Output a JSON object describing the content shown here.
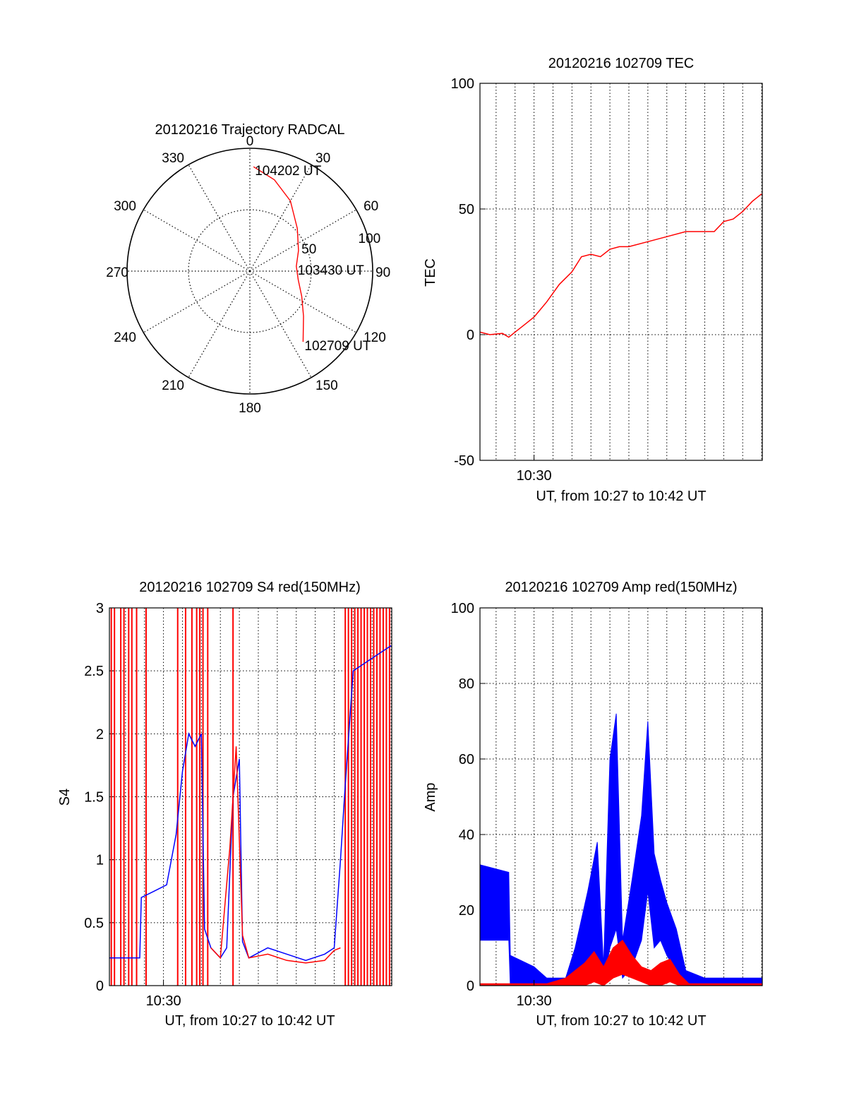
{
  "chart_data": [
    {
      "type": "polar",
      "title": "20120216 Trajectory RADCAL",
      "angle_ticks": [
        "0",
        "30",
        "60",
        "90",
        "120",
        "150",
        "180",
        "210",
        "240",
        "270",
        "300",
        "330"
      ],
      "radial_ticks": [
        "50",
        "100"
      ],
      "rlim": [
        0,
        100
      ],
      "grid": true,
      "series": [
        {
          "color": "#ff0000",
          "points": [
            {
              "az": 2,
              "r": 85,
              "label": "104202 UT"
            },
            {
              "az": 15,
              "r": 77
            },
            {
              "az": 30,
              "r": 66
            },
            {
              "az": 48,
              "r": 52
            },
            {
              "az": 67,
              "r": 43
            },
            {
              "az": 84,
              "r": 38,
              "label": "103430 UT"
            },
            {
              "az": 100,
              "r": 40
            },
            {
              "az": 116,
              "r": 47
            },
            {
              "az": 130,
              "r": 57
            },
            {
              "az": 143,
              "r": 72,
              "label": "102709 UT"
            }
          ]
        }
      ]
    },
    {
      "type": "line",
      "title": "20120216 102709 TEC",
      "ylabel": "TEC",
      "xlabel": "UT, from 10:27 to 10:42 UT",
      "xlim": [
        "10:27:09",
        "10:42:02"
      ],
      "x_ticks": [
        "10:30"
      ],
      "ylim": [
        -50,
        100
      ],
      "y_ticks": [
        100,
        50,
        0,
        -50
      ],
      "grid": true,
      "series": [
        {
          "color": "#ff0000",
          "points": [
            [
              "10:27:09",
              1
            ],
            [
              "10:27:40",
              0
            ],
            [
              "10:28:20",
              0.5
            ],
            [
              "10:28:40",
              -1
            ],
            [
              "10:29:00",
              1
            ],
            [
              "10:29:30",
              4
            ],
            [
              "10:30:00",
              7
            ],
            [
              "10:30:40",
              13
            ],
            [
              "10:31:20",
              20
            ],
            [
              "10:32:00",
              25
            ],
            [
              "10:32:30",
              31
            ],
            [
              "10:33:00",
              32
            ],
            [
              "10:33:30",
              31
            ],
            [
              "10:34:00",
              34
            ],
            [
              "10:34:30",
              35
            ],
            [
              "10:35:00",
              35
            ],
            [
              "10:36:00",
              37
            ],
            [
              "10:37:00",
              39
            ],
            [
              "10:38:00",
              41
            ],
            [
              "10:39:00",
              41
            ],
            [
              "10:39:30",
              41
            ],
            [
              "10:40:00",
              45
            ],
            [
              "10:40:30",
              46
            ],
            [
              "10:41:00",
              49
            ],
            [
              "10:41:30",
              53
            ],
            [
              "10:42:00",
              56
            ]
          ]
        }
      ]
    },
    {
      "type": "line",
      "title": "20120216 102709 S4 red(150MHz)",
      "ylabel": "S4",
      "xlabel": "UT, from 10:27 to 10:42 UT",
      "xlim": [
        "10:27:09",
        "10:42:02"
      ],
      "x_ticks": [
        "10:30"
      ],
      "ylim": [
        0,
        3
      ],
      "y_ticks": [
        3,
        2.5,
        2,
        1.5,
        1,
        0.5,
        0
      ],
      "grid": true,
      "series": [
        {
          "color": "#0000ff",
          "points": [
            [
              "10:27:09",
              0.22
            ],
            [
              "10:28:00",
              0.22
            ],
            [
              "10:28:45",
              0.22
            ],
            [
              "10:28:50",
              0.7
            ],
            [
              "10:29:30",
              0.75
            ],
            [
              "10:30:10",
              0.8
            ],
            [
              "10:30:40",
              1.2
            ],
            [
              "10:31:00",
              1.7
            ],
            [
              "10:31:20",
              2.0
            ],
            [
              "10:31:40",
              1.9
            ],
            [
              "10:32:00",
              2.0
            ],
            [
              "10:32:10",
              0.45
            ],
            [
              "10:32:30",
              0.3
            ],
            [
              "10:33:00",
              0.22
            ],
            [
              "10:33:20",
              0.3
            ],
            [
              "10:33:40",
              1.5
            ],
            [
              "10:34:00",
              1.8
            ],
            [
              "10:34:10",
              0.35
            ],
            [
              "10:34:30",
              0.22
            ],
            [
              "10:35:30",
              0.3
            ],
            [
              "10:36:30",
              0.25
            ],
            [
              "10:37:30",
              0.2
            ],
            [
              "10:38:30",
              0.25
            ],
            [
              "10:39:00",
              0.3
            ],
            [
              "10:39:20",
              1.0
            ],
            [
              "10:39:35",
              1.6
            ],
            [
              "10:40:00",
              2.5
            ],
            [
              "10:41:00",
              2.6
            ],
            [
              "10:42:00",
              2.7
            ]
          ]
        },
        {
          "color": "#ff0000",
          "points": [
            [
              "10:32:30",
              0.3
            ],
            [
              "10:33:00",
              0.22
            ],
            [
              "10:33:30",
              1.1
            ],
            [
              "10:33:50",
              1.9
            ],
            [
              "10:34:10",
              0.4
            ],
            [
              "10:34:30",
              0.22
            ],
            [
              "10:35:30",
              0.25
            ],
            [
              "10:36:30",
              0.2
            ],
            [
              "10:37:30",
              0.18
            ],
            [
              "10:38:30",
              0.2
            ],
            [
              "10:39:00",
              0.28
            ],
            [
              "10:39:20",
              0.3
            ]
          ]
        }
      ],
      "spikes": {
        "color": "#ff0000",
        "x": [
          "10:27:15",
          "10:27:25",
          "10:27:45",
          "10:27:55",
          "10:28:10",
          "10:28:20",
          "10:28:35",
          "10:29:05",
          "10:30:45",
          "10:31:10",
          "10:31:30",
          "10:31:45",
          "10:31:55",
          "10:32:05",
          "10:32:20",
          "10:33:40",
          "10:39:35",
          "10:39:45",
          "10:39:55",
          "10:40:05",
          "10:40:15",
          "10:40:25",
          "10:40:35",
          "10:40:45",
          "10:40:55",
          "10:41:05",
          "10:41:15",
          "10:41:25",
          "10:41:35",
          "10:41:45",
          "10:41:55"
        ]
      }
    },
    {
      "type": "line",
      "title": "20120216 102709 Amp red(150MHz)",
      "ylabel": "Amp",
      "xlabel": "UT, from 10:27 to 10:42 UT",
      "xlim": [
        "10:27:09",
        "10:42:02"
      ],
      "x_ticks": [
        "10:30"
      ],
      "ylim": [
        0,
        100
      ],
      "y_ticks": [
        100,
        80,
        60,
        40,
        20,
        0
      ],
      "grid": true,
      "series": [
        {
          "color": "#0000ff",
          "band": [
            [
              "10:27:09",
              12,
              32
            ],
            [
              "10:28:40",
              12,
              30
            ],
            [
              "10:28:45",
              0,
              8
            ],
            [
              "10:30:00",
              0,
              5
            ],
            [
              "10:30:40",
              0,
              2
            ],
            [
              "10:31:40",
              0,
              2
            ],
            [
              "10:32:10",
              0,
              10
            ],
            [
              "10:32:50",
              2,
              25
            ],
            [
              "10:33:20",
              3,
              38
            ],
            [
              "10:33:40",
              1,
              5
            ],
            [
              "10:34:00",
              10,
              60
            ],
            [
              "10:34:20",
              15,
              72
            ],
            [
              "10:34:40",
              2,
              12
            ],
            [
              "10:35:10",
              5,
              28
            ],
            [
              "10:35:40",
              12,
              45
            ],
            [
              "10:36:00",
              25,
              70
            ],
            [
              "10:36:20",
              10,
              35
            ],
            [
              "10:36:40",
              12,
              28
            ],
            [
              "10:37:00",
              8,
              22
            ],
            [
              "10:37:30",
              4,
              15
            ],
            [
              "10:38:00",
              0,
              4
            ],
            [
              "10:39:00",
              0,
              2
            ],
            [
              "10:42:00",
              0,
              2
            ]
          ]
        },
        {
          "color": "#ff0000",
          "band": [
            [
              "10:27:09",
              0,
              0.5
            ],
            [
              "10:30:40",
              0,
              0.5
            ],
            [
              "10:31:40",
              0,
              2
            ],
            [
              "10:32:40",
              0,
              6
            ],
            [
              "10:33:10",
              1,
              9
            ],
            [
              "10:33:40",
              0,
              5
            ],
            [
              "10:34:10",
              2,
              10
            ],
            [
              "10:34:40",
              3,
              12
            ],
            [
              "10:35:10",
              2,
              8
            ],
            [
              "10:35:40",
              1,
              5
            ],
            [
              "10:36:10",
              0,
              4
            ],
            [
              "10:36:40",
              0,
              6
            ],
            [
              "10:37:10",
              1,
              7
            ],
            [
              "10:37:40",
              0,
              3
            ],
            [
              "10:38:10",
              0,
              0.5
            ],
            [
              "10:42:00",
              0,
              0.5
            ]
          ]
        }
      ]
    }
  ]
}
